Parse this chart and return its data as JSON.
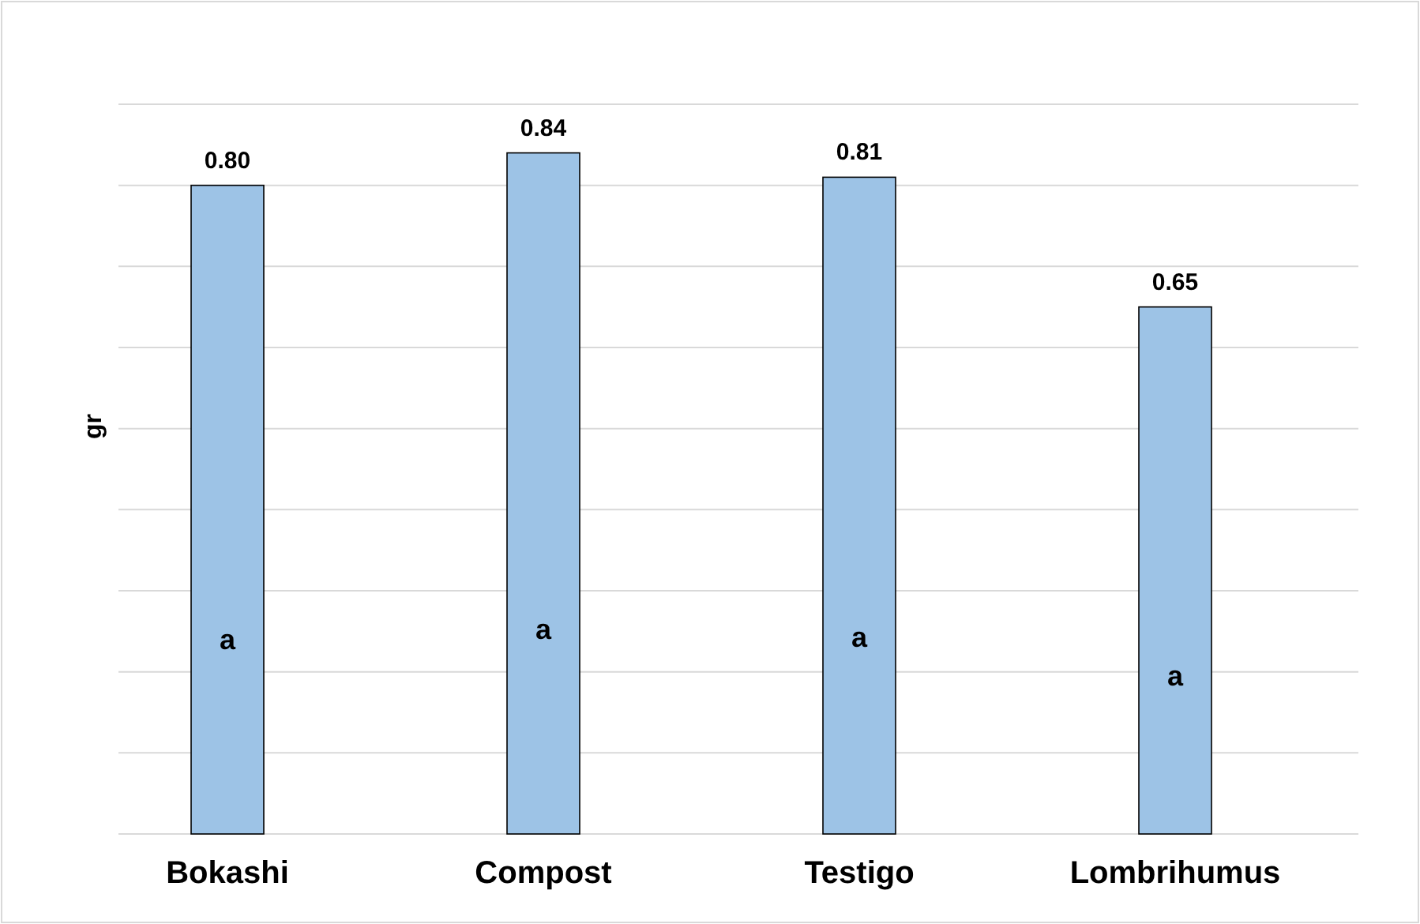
{
  "chart_data": {
    "type": "bar",
    "ylabel": "gr",
    "categories": [
      "Bokashi",
      "Compost",
      "Testigo",
      "Lombrihumus"
    ],
    "values": [
      0.8,
      0.84,
      0.81,
      0.65
    ],
    "value_labels": [
      "0.80",
      "0.84",
      "0.81",
      "0.65"
    ],
    "color": "#9dc3e6",
    "ylim": [
      0,
      0.9
    ],
    "yticks": [
      {
        "value": 0.1,
        "label": null
      },
      {
        "value": 0.2,
        "label": null
      },
      {
        "value": 0.3,
        "label": null
      },
      {
        "value": 0.4,
        "label": null
      },
      {
        "value": 0.5,
        "label": null
      },
      {
        "value": 0.6,
        "label": null
      },
      {
        "value": 0.7,
        "label": null
      },
      {
        "value": 0.8,
        "label": null
      },
      {
        "value": 0.9,
        "label": null
      }
    ],
    "tick_labels": "x",
    "grid": "y",
    "annotations": [
      "a",
      "a",
      "a",
      "a"
    ]
  }
}
